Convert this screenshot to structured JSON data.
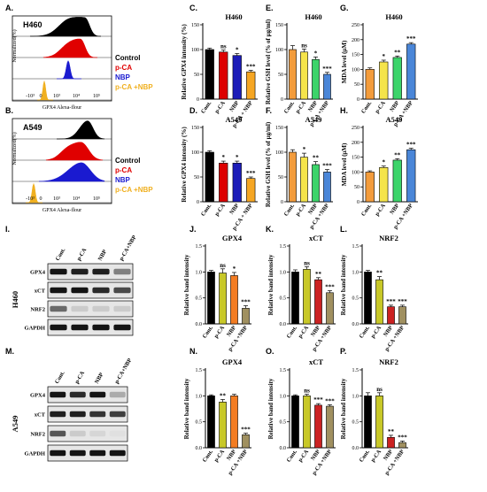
{
  "panel_labels": [
    "A.",
    "B.",
    "C.",
    "D.",
    "E.",
    "F.",
    "G.",
    "H.",
    "I.",
    "J.",
    "K.",
    "L.",
    "M.",
    "N.",
    "O.",
    "P."
  ],
  "legend": [
    {
      "name": "Control",
      "color": "#000000"
    },
    {
      "name": "p-CA",
      "color": "#e00000"
    },
    {
      "name": "NBP",
      "color": "#1a1ad0"
    },
    {
      "name": "p-CA +NBP",
      "color": "#f0b020"
    }
  ],
  "flow_panels": [
    {
      "cell_line": "H460",
      "xlabel": "GPX4 Alexa-flour",
      "ylabel": "Normalized(%)",
      "ticks": [
        "-10³",
        "0",
        "10³",
        "10⁴",
        "10⁵"
      ]
    },
    {
      "cell_line": "A549",
      "xlabel": "GPX4 Alexa-flour",
      "ylabel": "Normalized(%)",
      "ticks": [
        "-10³",
        "0",
        "10³",
        "10⁴",
        "10⁵"
      ]
    }
  ],
  "western_blots": [
    {
      "cell_line": "H460",
      "lanes": [
        "Cont.",
        "p-CA",
        "NBP",
        "p-CA+NBP"
      ],
      "proteins": [
        "GPX4",
        "xCT",
        "NRF2",
        "GAPDH"
      ]
    },
    {
      "cell_line": "A549",
      "lanes": [
        "Cont.",
        "p-CA",
        "NBP",
        "p-CA+NBP"
      ],
      "proteins": [
        "GPX4",
        "xCT",
        "NRF2",
        "GAPDH"
      ]
    }
  ],
  "chart_data": [
    {
      "id": "C",
      "type": "bar",
      "title": "H460",
      "ylabel": "Relative GPX4 intensity (%)",
      "ylim": [
        0,
        150
      ],
      "yticks": [
        0,
        50,
        100,
        150
      ],
      "categories": [
        "Cont.",
        "p-CA",
        "NBP",
        "p-CA + NBP"
      ],
      "values": [
        100,
        95,
        88,
        55
      ],
      "errors": [
        3,
        4,
        4,
        3
      ],
      "significance": [
        "",
        "ns",
        "*",
        "***"
      ],
      "colors": [
        "#000000",
        "#dd0000",
        "#1c1cb8",
        "#f5a623"
      ]
    },
    {
      "id": "D",
      "type": "bar",
      "title": "A549",
      "ylabel": "Relative GPX4 intensity (%)",
      "ylim": [
        0,
        150
      ],
      "yticks": [
        0,
        50,
        100,
        150
      ],
      "categories": [
        "Cont.",
        "p-CA",
        "NBP",
        "p-CA + NBP"
      ],
      "values": [
        100,
        78,
        78,
        47
      ],
      "errors": [
        3,
        4,
        4,
        3
      ],
      "significance": [
        "",
        "*",
        "*",
        "***"
      ],
      "colors": [
        "#000000",
        "#dd0000",
        "#1c1cb8",
        "#f5a623"
      ]
    },
    {
      "id": "E",
      "type": "bar",
      "title": "H460",
      "ylabel": "Relative GSH level (% of μg/ml)",
      "ylim": [
        0,
        150
      ],
      "yticks": [
        0,
        50,
        100,
        150
      ],
      "categories": [
        "Cont.",
        "p-CA",
        "NBP",
        "p-CA +NBP"
      ],
      "values": [
        100,
        95,
        80,
        50
      ],
      "errors": [
        8,
        6,
        5,
        4
      ],
      "significance": [
        "",
        "ns",
        "*",
        "***"
      ],
      "colors": [
        "#f39c3c",
        "#f5e44a",
        "#3cd46a",
        "#4a86d8"
      ]
    },
    {
      "id": "F",
      "type": "bar",
      "title": "A549",
      "ylabel": "Relative GSH level (% of μg/ml)",
      "ylim": [
        0,
        150
      ],
      "yticks": [
        0,
        50,
        100,
        150
      ],
      "categories": [
        "Cont.",
        "p-CA",
        "NBP",
        "p-CA +NBP"
      ],
      "values": [
        100,
        90,
        75,
        60
      ],
      "errors": [
        5,
        8,
        6,
        5
      ],
      "significance": [
        "",
        "*",
        "**",
        "***"
      ],
      "colors": [
        "#f39c3c",
        "#f5e44a",
        "#3cd46a",
        "#4a86d8"
      ]
    },
    {
      "id": "G",
      "type": "bar",
      "title": "H460",
      "ylabel": "MDA level (μM)",
      "ylim": [
        0,
        250
      ],
      "yticks": [
        0,
        50,
        100,
        150,
        200,
        250
      ],
      "categories": [
        "Cont.",
        "p-CA",
        "NBP",
        "p-CA +NBP"
      ],
      "values": [
        100,
        125,
        140,
        185
      ],
      "errors": [
        5,
        6,
        5,
        5
      ],
      "significance": [
        "",
        "*",
        "**",
        "***"
      ],
      "colors": [
        "#f39c3c",
        "#f5e44a",
        "#3cd46a",
        "#4a86d8"
      ]
    },
    {
      "id": "H",
      "type": "bar",
      "title": "A549",
      "ylabel": "MDA level (μM)",
      "ylim": [
        0,
        250
      ],
      "yticks": [
        0,
        50,
        100,
        150,
        200,
        250
      ],
      "categories": [
        "Cont.",
        "p-CA",
        "NBP",
        "p-CA +NBP"
      ],
      "values": [
        100,
        115,
        140,
        175
      ],
      "errors": [
        4,
        5,
        5,
        5
      ],
      "significance": [
        "",
        "*",
        "**",
        "***"
      ],
      "colors": [
        "#f39c3c",
        "#f5e44a",
        "#3cd46a",
        "#4a86d8"
      ]
    },
    {
      "id": "J",
      "type": "bar",
      "title": "GPX4",
      "ylabel": "Relative band intensity",
      "ylim": [
        0,
        1.5
      ],
      "yticks": [
        0.0,
        0.5,
        1.0,
        1.5
      ],
      "categories": [
        "Cont.",
        "p-CA",
        "NBP",
        "p-CA +NBP"
      ],
      "values": [
        1.0,
        0.98,
        0.93,
        0.3
      ],
      "errors": [
        0.03,
        0.08,
        0.06,
        0.05
      ],
      "significance": [
        "",
        "ns",
        "*",
        "***"
      ],
      "colors": [
        "#000000",
        "#c8c828",
        "#f37c22",
        "#a09060"
      ]
    },
    {
      "id": "K",
      "type": "bar",
      "title": "xCT",
      "ylabel": "Relative band intensity",
      "ylim": [
        0,
        1.5
      ],
      "yticks": [
        0.0,
        0.5,
        1.0,
        1.5
      ],
      "categories": [
        "Cont.",
        "p-CA",
        "NBP",
        "p-CA +NBP"
      ],
      "values": [
        1.0,
        1.05,
        0.85,
        0.6
      ],
      "errors": [
        0.04,
        0.05,
        0.04,
        0.04
      ],
      "significance": [
        "",
        "ns",
        "**",
        "***"
      ],
      "colors": [
        "#000000",
        "#c8c828",
        "#cc2222",
        "#a09060"
      ]
    },
    {
      "id": "L",
      "type": "bar",
      "title": "NRF2",
      "ylabel": "Relative band intensity",
      "ylim": [
        0,
        1.5
      ],
      "yticks": [
        0.0,
        0.5,
        1.0,
        1.5
      ],
      "categories": [
        "Cont.",
        "p-CA",
        "NBP",
        "p-CA +NBP"
      ],
      "values": [
        1.0,
        0.85,
        0.33,
        0.33
      ],
      "errors": [
        0.03,
        0.06,
        0.03,
        0.03
      ],
      "significance": [
        "",
        "**",
        "***",
        "***"
      ],
      "colors": [
        "#000000",
        "#c8c828",
        "#cc2222",
        "#a09060"
      ]
    },
    {
      "id": "N",
      "type": "bar",
      "title": "GPX4",
      "ylabel": "Relative band intensity",
      "ylim": [
        0,
        1.5
      ],
      "yticks": [
        0.0,
        0.5,
        1.0,
        1.5
      ],
      "categories": [
        "Cont.",
        "p-CA",
        "NBP",
        "p-CA +NBP"
      ],
      "values": [
        1.0,
        0.88,
        1.0,
        0.25
      ],
      "errors": [
        0.02,
        0.05,
        0.03,
        0.03
      ],
      "significance": [
        "",
        "**",
        "",
        "***"
      ],
      "colors": [
        "#000000",
        "#c8c828",
        "#f37c22",
        "#a09060"
      ]
    },
    {
      "id": "O",
      "type": "bar",
      "title": "xCT",
      "ylabel": "Relative band intensity",
      "ylim": [
        0,
        1.5
      ],
      "yticks": [
        0.0,
        0.5,
        1.0,
        1.5
      ],
      "categories": [
        "Cont.",
        "p-CA",
        "NBP",
        "p-CA +NBP"
      ],
      "values": [
        1.0,
        1.0,
        0.82,
        0.8
      ],
      "errors": [
        0.02,
        0.03,
        0.03,
        0.03
      ],
      "significance": [
        "",
        "ns",
        "***",
        "***"
      ],
      "colors": [
        "#000000",
        "#c8c828",
        "#cc2222",
        "#a09060"
      ]
    },
    {
      "id": "P",
      "type": "bar",
      "title": "NRF2",
      "ylabel": "Relative band intensity",
      "ylim": [
        0,
        1.5
      ],
      "yticks": [
        0.0,
        0.5,
        1.0,
        1.5
      ],
      "categories": [
        "Cont.",
        "p-CA",
        "NBP",
        "p-CA +NBP"
      ],
      "values": [
        1.0,
        1.0,
        0.2,
        0.1
      ],
      "errors": [
        0.06,
        0.06,
        0.04,
        0.03
      ],
      "significance": [
        "",
        "ns",
        "**",
        "***"
      ],
      "colors": [
        "#000000",
        "#c8c828",
        "#cc2222",
        "#a09060"
      ]
    }
  ]
}
